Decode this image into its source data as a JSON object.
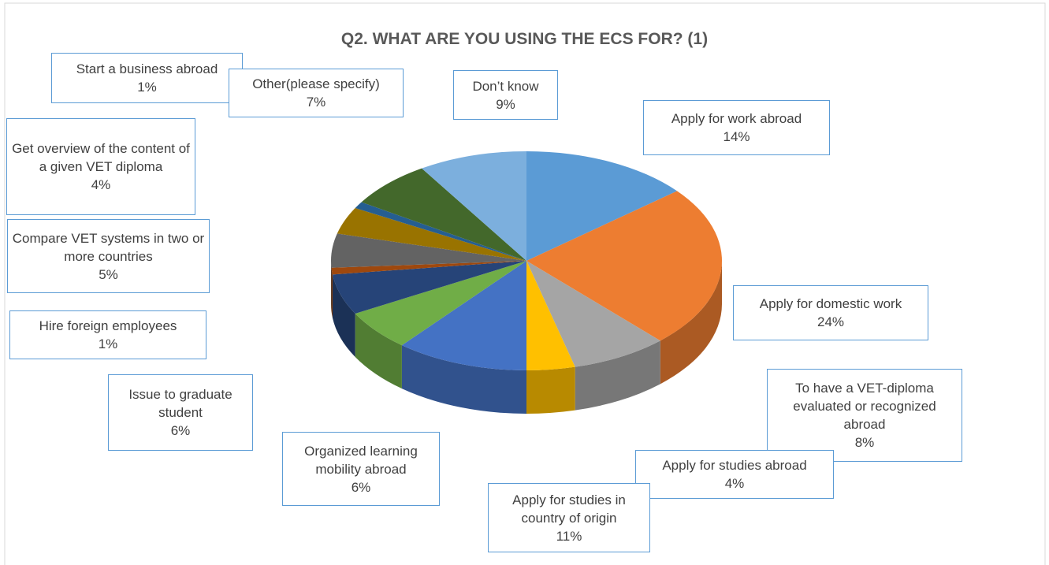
{
  "chart_data": {
    "type": "pie",
    "title": "Q2. WHAT ARE YOU USING THE ECS FOR? (1)",
    "categories": [
      "Apply for work abroad",
      "Apply for domestic work",
      "To have a VET-diploma evaluated or recognized abroad",
      "Apply for studies abroad",
      "Apply for studies in country of origin",
      "Organized learning mobility abroad",
      "Issue to graduate student",
      "Hire foreign employees",
      "Compare VET systems in two or more countries",
      "Get overview of the content of a given VET diploma",
      "Start a business abroad",
      "Other(please specify)",
      "Don’t know"
    ],
    "values": [
      14,
      24,
      8,
      4,
      11,
      6,
      6,
      1,
      5,
      4,
      1,
      7,
      9
    ],
    "value_labels": [
      "14%",
      "24%",
      "8%",
      "4%",
      "11%",
      "6%",
      "6%",
      "1%",
      "5%",
      "4%",
      "1%",
      "7%",
      "9%"
    ],
    "colors": [
      "#5b9bd5",
      "#ed7d31",
      "#a5a5a5",
      "#ffc000",
      "#4472c4",
      "#70ad47",
      "#264478",
      "#9e480e",
      "#636363",
      "#997300",
      "#255e91",
      "#43682b",
      "#7cafdd"
    ]
  }
}
